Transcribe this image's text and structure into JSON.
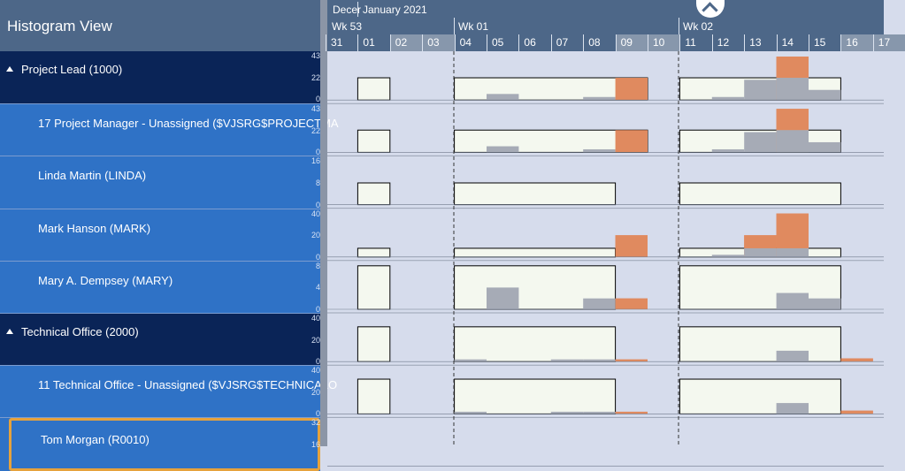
{
  "header": {
    "title": "Histogram View"
  },
  "timeline": {
    "month_prev": "Decer",
    "month": "January 2021",
    "weeks": [
      "Wk 53",
      "Wk 01",
      "Wk 02"
    ],
    "days": [
      "31",
      "01",
      "02",
      "03",
      "04",
      "05",
      "06",
      "07",
      "08",
      "09",
      "10",
      "11",
      "12",
      "13",
      "14",
      "15",
      "16",
      "17"
    ],
    "weekend_days": [
      "02",
      "03",
      "09",
      "10",
      "16",
      "17"
    ]
  },
  "rows": [
    {
      "type": "group",
      "label": "Project Lead (1000)",
      "axis": [
        "43",
        "22",
        "0"
      ],
      "max": 43,
      "avail": [
        0,
        22,
        0,
        0,
        22,
        22,
        22,
        22,
        22,
        22,
        0,
        22,
        22,
        22,
        22,
        22,
        0,
        0
      ],
      "used": [
        0,
        0,
        0,
        0,
        0,
        6,
        0,
        0,
        3,
        0,
        0,
        0,
        3,
        20,
        22,
        10,
        0,
        0
      ],
      "over": [
        0,
        0,
        0,
        0,
        0,
        0,
        0,
        0,
        0,
        22,
        0,
        0,
        0,
        0,
        43,
        0,
        0,
        0
      ]
    },
    {
      "type": "resource",
      "label": "17 Project Manager - Unassigned ($VJSRG$PROJECTMA",
      "axis": [
        "43",
        "22",
        "0"
      ],
      "max": 43,
      "avail": [
        0,
        22,
        0,
        0,
        22,
        22,
        22,
        22,
        22,
        22,
        0,
        22,
        22,
        22,
        22,
        22,
        0,
        0
      ],
      "used": [
        0,
        0,
        0,
        0,
        0,
        6,
        0,
        0,
        3,
        0,
        0,
        0,
        3,
        20,
        22,
        10,
        0,
        0
      ],
      "over": [
        0,
        0,
        0,
        0,
        0,
        0,
        0,
        0,
        0,
        22,
        0,
        0,
        0,
        0,
        43,
        0,
        0,
        0
      ]
    },
    {
      "type": "resource",
      "label": "Linda Martin (LINDA)",
      "axis": [
        "16",
        "8",
        "0"
      ],
      "max": 16,
      "avail": [
        0,
        8,
        0,
        0,
        8,
        8,
        8,
        8,
        8,
        0,
        0,
        8,
        8,
        8,
        8,
        8,
        0,
        0
      ],
      "used": [
        0,
        0,
        0,
        0,
        0,
        0,
        0,
        0,
        0,
        0,
        0,
        0,
        0,
        0,
        0,
        0,
        0,
        0
      ],
      "over": [
        0,
        0,
        0,
        0,
        0,
        0,
        0,
        0,
        0,
        0,
        0,
        0,
        0,
        0,
        0,
        0,
        0,
        0
      ]
    },
    {
      "type": "resource",
      "label": "Mark Hanson (MARK)",
      "axis": [
        "40",
        "20",
        "0"
      ],
      "max": 40,
      "avail": [
        0,
        8,
        0,
        0,
        8,
        8,
        8,
        8,
        8,
        0,
        0,
        8,
        8,
        8,
        8,
        8,
        0,
        0
      ],
      "used": [
        0,
        0,
        0,
        0,
        0,
        0,
        0,
        0,
        0,
        0,
        0,
        0,
        2,
        8,
        8,
        0,
        0,
        0
      ],
      "over": [
        0,
        0,
        0,
        0,
        0,
        0,
        0,
        0,
        0,
        20,
        0,
        0,
        0,
        20,
        40,
        0,
        0,
        0
      ]
    },
    {
      "type": "resource",
      "label": "Mary A. Dempsey (MARY)",
      "axis": [
        "8",
        "4",
        "0"
      ],
      "max": 8,
      "avail": [
        0,
        8,
        0,
        0,
        8,
        8,
        8,
        8,
        8,
        0,
        0,
        8,
        8,
        8,
        8,
        8,
        0,
        0
      ],
      "used": [
        0,
        0,
        0,
        0,
        0,
        4,
        0,
        0,
        2,
        0,
        0,
        0,
        0,
        0,
        3,
        2,
        0,
        0
      ],
      "over": [
        0,
        0,
        0,
        0,
        0,
        0,
        0,
        0,
        0,
        2,
        0,
        0,
        0,
        0,
        0,
        0,
        0,
        0
      ]
    },
    {
      "type": "group",
      "label": "Technical Office (2000)",
      "axis": [
        "40",
        "20",
        "0"
      ],
      "max": 40,
      "avail": [
        0,
        32,
        0,
        0,
        32,
        32,
        32,
        32,
        32,
        0,
        0,
        32,
        32,
        32,
        32,
        32,
        0,
        0
      ],
      "used": [
        0,
        0,
        0,
        0,
        2,
        0,
        0,
        2,
        2,
        0,
        0,
        0,
        0,
        0,
        10,
        0,
        0,
        0
      ],
      "over": [
        0,
        0,
        0,
        0,
        0,
        0,
        0,
        0,
        0,
        2,
        0,
        0,
        0,
        0,
        0,
        0,
        3,
        0
      ]
    },
    {
      "type": "resource",
      "label": "11 Technical Office - Unassigned ($VJSRG$TECHNICALO",
      "axis": [
        "40",
        "20",
        "0"
      ],
      "max": 40,
      "avail": [
        0,
        32,
        0,
        0,
        32,
        32,
        32,
        32,
        32,
        0,
        0,
        32,
        32,
        32,
        32,
        32,
        0,
        0
      ],
      "used": [
        0,
        0,
        0,
        0,
        2,
        0,
        0,
        2,
        2,
        0,
        0,
        0,
        0,
        0,
        10,
        0,
        0,
        0
      ],
      "over": [
        0,
        0,
        0,
        0,
        0,
        0,
        0,
        0,
        0,
        2,
        0,
        0,
        0,
        0,
        0,
        0,
        3,
        0
      ]
    },
    {
      "type": "resource",
      "label": "Tom Morgan (R0010)",
      "axis": [
        "32",
        "16"
      ],
      "max": 32,
      "selected": true,
      "avail": [],
      "used": [],
      "over": []
    }
  ],
  "colors": {
    "avail_fill": "#f7fbf0",
    "used": "#a6abb6",
    "over": "#e08a5f",
    "chart_bg": "#d6dcec",
    "accent_sel": "#e6a23c"
  }
}
